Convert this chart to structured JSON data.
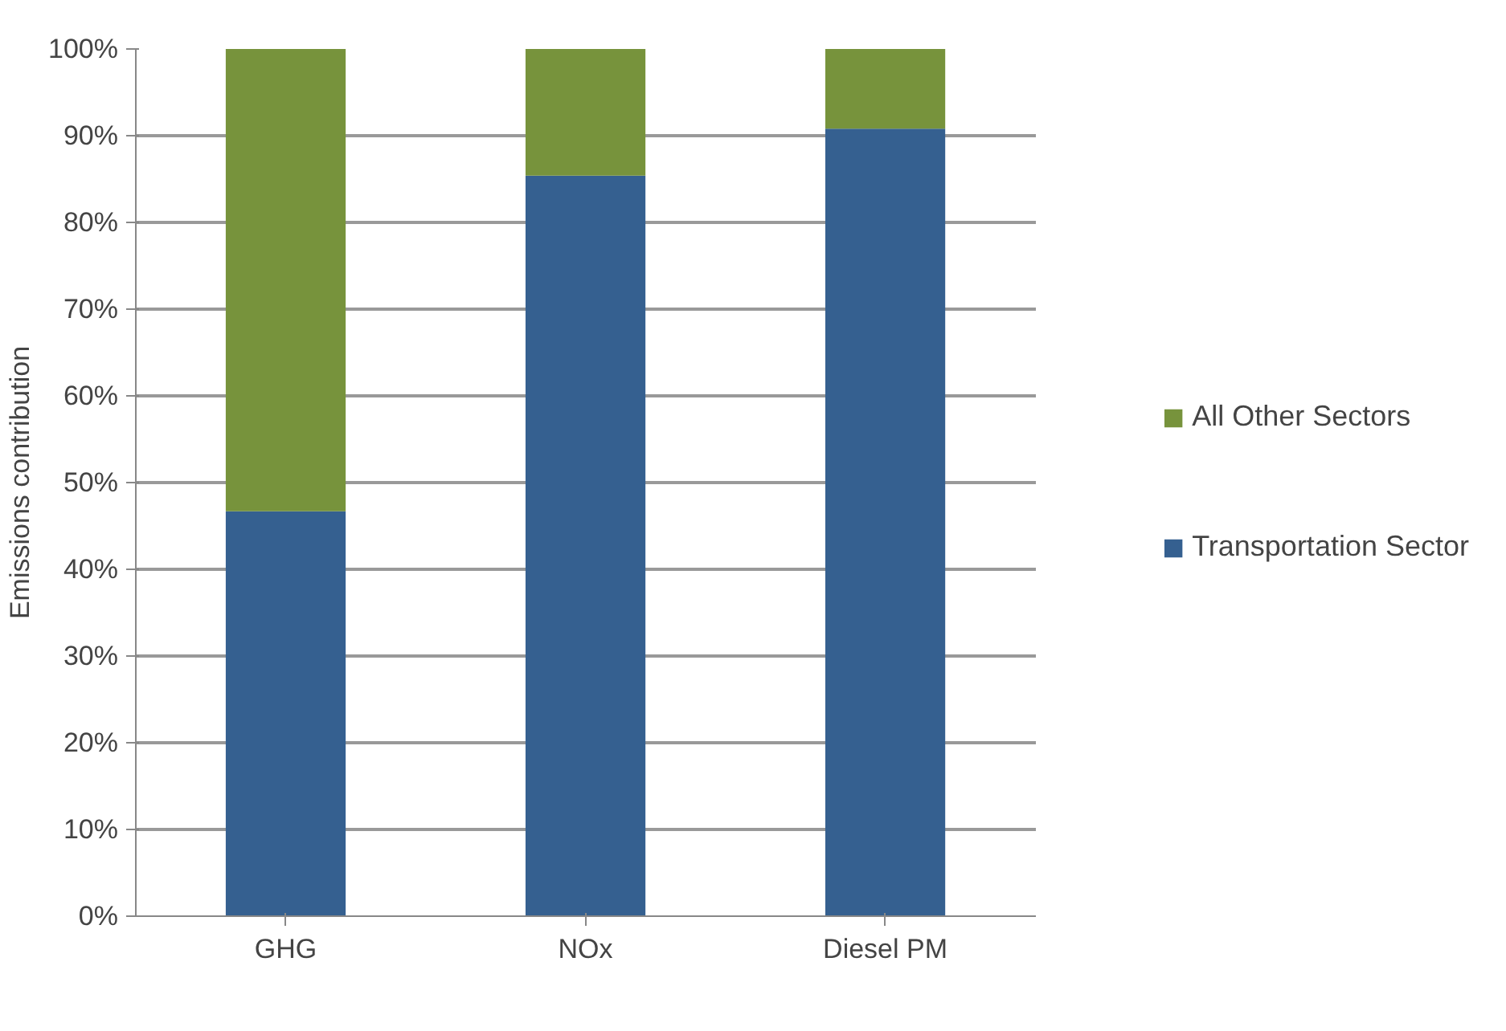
{
  "chart_data": {
    "type": "bar",
    "stacked": true,
    "ylabel": "Emissions contribution",
    "categories": [
      "GHG",
      "NOx",
      "Diesel PM"
    ],
    "series": [
      {
        "name": "Transportation Sector",
        "color": "#356090",
        "values": [
          46.7,
          85.4,
          90.8
        ]
      },
      {
        "name": "All Other Sectors",
        "color": "#77933c",
        "values": [
          53.3,
          14.6,
          9.2
        ]
      }
    ],
    "ylim": [
      0,
      100
    ],
    "yticks": [
      {
        "value": 0,
        "label": "0%"
      },
      {
        "value": 10,
        "label": "10%"
      },
      {
        "value": 20,
        "label": "20%"
      },
      {
        "value": 30,
        "label": "30%"
      },
      {
        "value": 40,
        "label": "40%"
      },
      {
        "value": 50,
        "label": "50%"
      },
      {
        "value": 60,
        "label": "60%"
      },
      {
        "value": 70,
        "label": "70%"
      },
      {
        "value": 80,
        "label": "80%"
      },
      {
        "value": 90,
        "label": "90%"
      },
      {
        "value": 100,
        "label": "100%"
      }
    ],
    "grid": "y",
    "legend": "right"
  }
}
